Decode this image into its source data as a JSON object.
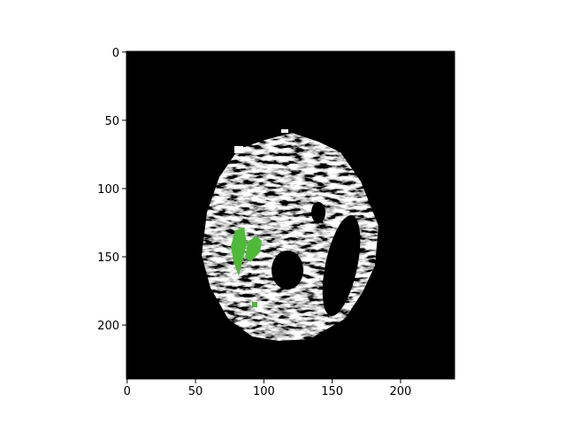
{
  "chart_data": {
    "type": "image",
    "xlim": [
      -0.5,
      239.5
    ],
    "ylim": [
      239.5,
      -0.5
    ],
    "xticks": [
      0,
      50,
      100,
      150,
      200
    ],
    "yticks": [
      0,
      50,
      100,
      150,
      200
    ]
  }
}
